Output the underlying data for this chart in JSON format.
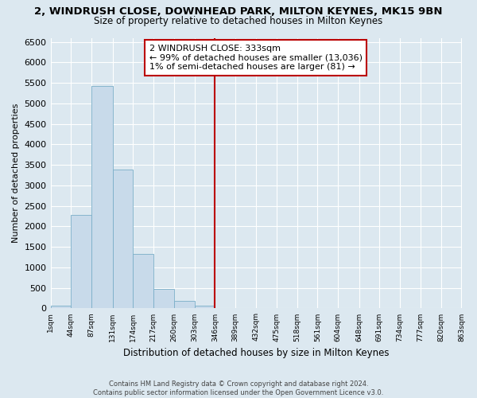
{
  "title": "2, WINDRUSH CLOSE, DOWNHEAD PARK, MILTON KEYNES, MK15 9BN",
  "subtitle": "Size of property relative to detached houses in Milton Keynes",
  "xlabel": "Distribution of detached houses by size in Milton Keynes",
  "ylabel": "Number of detached properties",
  "bar_color": "#c8daea",
  "bar_edge_color": "#7aaec8",
  "background_color": "#dce8f0",
  "plot_bg_color": "#dce8f0",
  "grid_color": "#ffffff",
  "bins": [
    1,
    44,
    87,
    131,
    174,
    217,
    260,
    303,
    346,
    389,
    432,
    475,
    518,
    561,
    604,
    648,
    691,
    734,
    777,
    820,
    863
  ],
  "bin_labels": [
    "1sqm",
    "44sqm",
    "87sqm",
    "131sqm",
    "174sqm",
    "217sqm",
    "260sqm",
    "303sqm",
    "346sqm",
    "389sqm",
    "432sqm",
    "475sqm",
    "518sqm",
    "561sqm",
    "604sqm",
    "648sqm",
    "691sqm",
    "734sqm",
    "777sqm",
    "820sqm",
    "863sqm"
  ],
  "bar_heights": [
    70,
    2280,
    5430,
    3380,
    1320,
    480,
    190,
    75,
    0,
    0,
    0,
    0,
    0,
    0,
    0,
    0,
    0,
    0,
    0,
    0
  ],
  "ylim": [
    0,
    6600
  ],
  "yticks": [
    0,
    500,
    1000,
    1500,
    2000,
    2500,
    3000,
    3500,
    4000,
    4500,
    5000,
    5500,
    6000,
    6500
  ],
  "vline_x": 346,
  "vline_color": "#bb0000",
  "annotation_title": "2 WINDRUSH CLOSE: 333sqm",
  "annotation_line1": "← 99% of detached houses are smaller (13,036)",
  "annotation_line2": "1% of semi-detached houses are larger (81) →",
  "footer_line1": "Contains HM Land Registry data © Crown copyright and database right 2024.",
  "footer_line2": "Contains public sector information licensed under the Open Government Licence v3.0.",
  "title_fontsize": 9.5,
  "subtitle_fontsize": 8.5,
  "ylabel_fontsize": 8,
  "xlabel_fontsize": 8.5,
  "ytick_fontsize": 8,
  "xtick_fontsize": 6.5,
  "annot_fontsize": 8,
  "footer_fontsize": 6.0
}
